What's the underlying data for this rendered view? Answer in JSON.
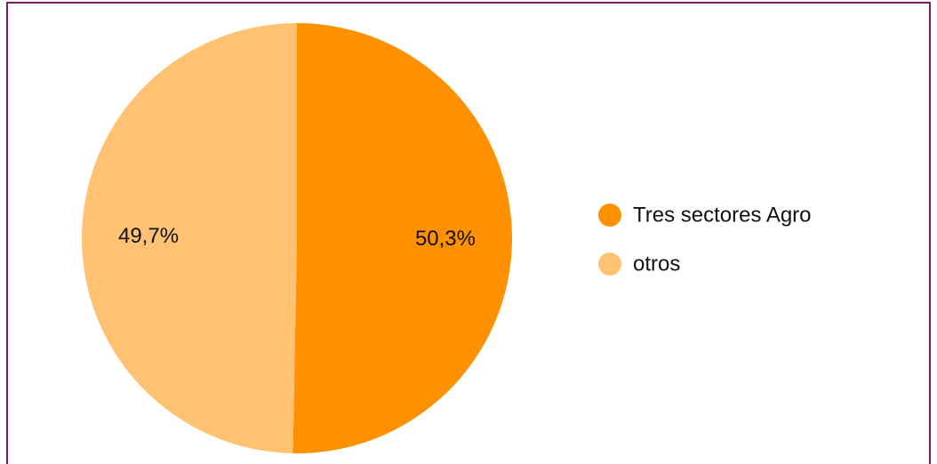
{
  "chart_data": {
    "type": "pie",
    "categories": [
      "Tres sectores Agro",
      "otros"
    ],
    "values": [
      50.3,
      49.7
    ],
    "value_labels": [
      "50,3%",
      "49,7%"
    ],
    "colors": [
      "#ff9100",
      "#ffc172"
    ],
    "legend": "right"
  }
}
